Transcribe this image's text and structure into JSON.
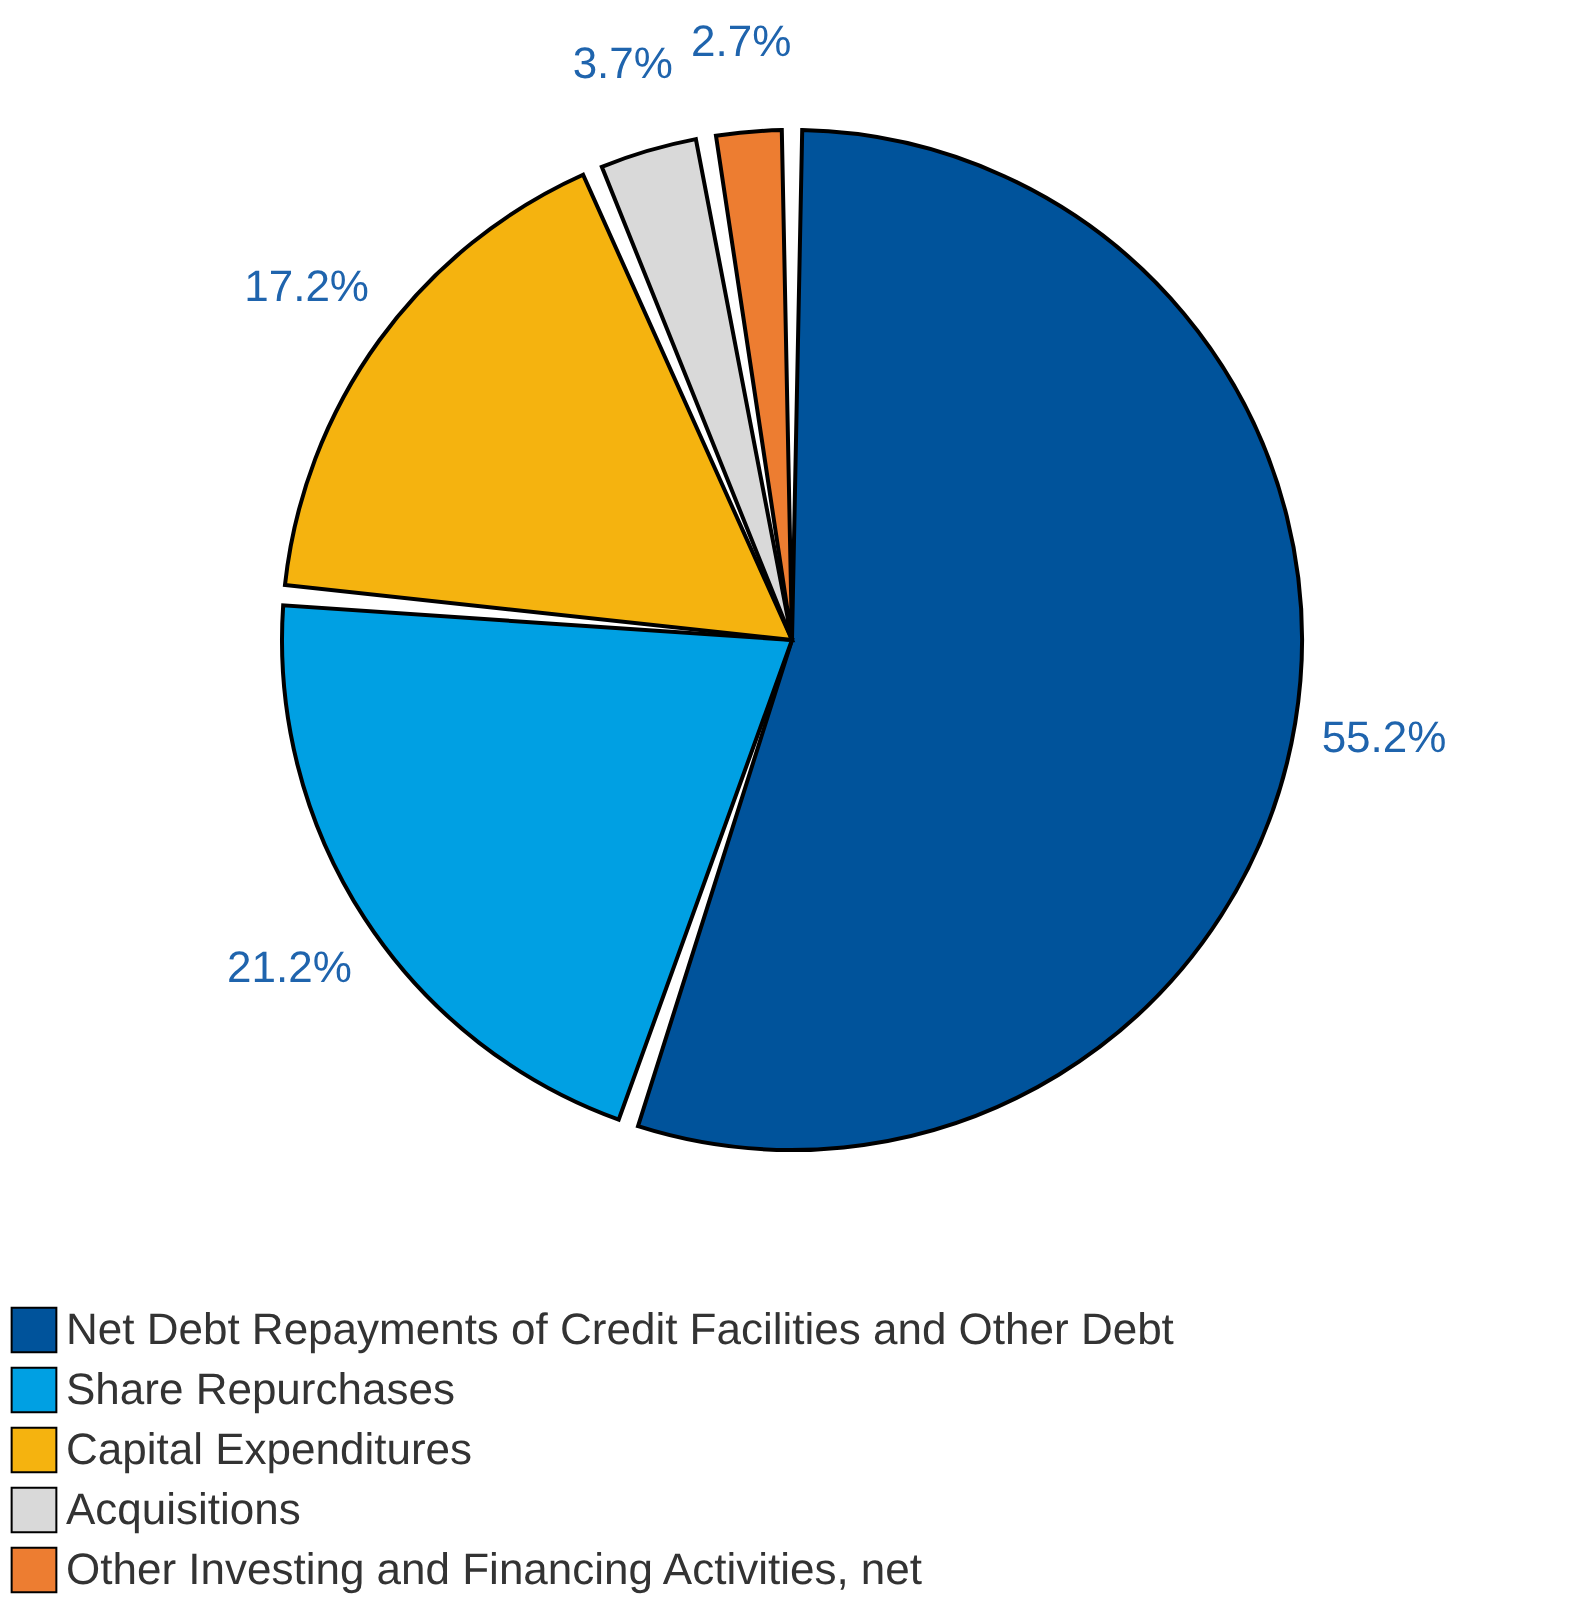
{
  "chart_data": {
    "type": "pie",
    "categories": [
      "Net Debt Repayments of Credit Facilities and Other Debt",
      "Share Repurchases",
      "Capital Expenditures",
      "Acquisitions",
      "Other Investing and Financing Activities, net"
    ],
    "values": [
      55.2,
      21.2,
      17.2,
      3.7,
      2.7
    ],
    "colors": [
      "#00539b",
      "#00a0e3",
      "#f5b30f",
      "#d9d9d9",
      "#ed7d31"
    ],
    "value_labels": [
      "55.2%",
      "21.2%",
      "17.2%",
      "3.7%",
      "2.7%"
    ],
    "legend": "bottom"
  }
}
